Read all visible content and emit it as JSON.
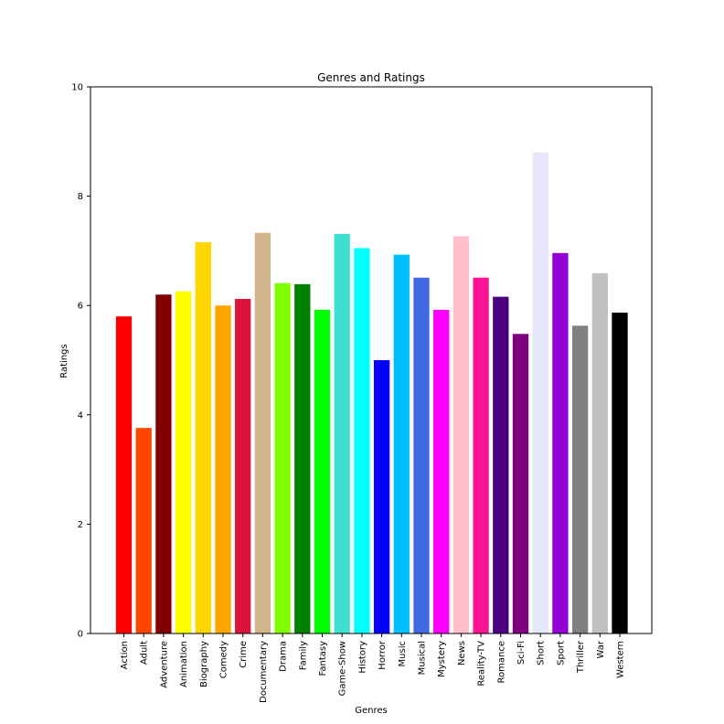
{
  "chart_data": {
    "type": "bar",
    "title": "Genres and Ratings",
    "xlabel": "Genres",
    "ylabel": "Ratings",
    "ylim": [
      0,
      10
    ],
    "yticks": [
      "0",
      "2",
      "4",
      "6",
      "8",
      "10"
    ],
    "categories": [
      "Action",
      "Adult",
      "Adventure",
      "Animation",
      "Biography",
      "Comedy",
      "Crime",
      "Documentary",
      "Drama",
      "Family",
      "Fantasy",
      "Game-Show",
      "History",
      "Horror",
      "Music",
      "Musical",
      "Mystery",
      "News",
      "Reality-TV",
      "Romance",
      "Sci-Fi",
      "Short",
      "Sport",
      "Thriller",
      "War",
      "Western"
    ],
    "values": [
      5.8,
      3.76,
      6.2,
      6.26,
      7.16,
      6.0,
      6.12,
      7.33,
      6.41,
      6.39,
      5.92,
      7.31,
      7.05,
      5.0,
      6.93,
      6.51,
      5.92,
      7.27,
      6.51,
      6.16,
      5.48,
      8.8,
      6.96,
      5.63,
      6.59,
      5.87
    ],
    "colors": [
      "#ff0000",
      "#ff4500",
      "#800000",
      "#ffff00",
      "#ffd700",
      "#ffa500",
      "#dc143c",
      "#d2b48c",
      "#7fff00",
      "#008000",
      "#00ff00",
      "#40e0d0",
      "#00ffff",
      "#0000ff",
      "#00bfff",
      "#4169e1",
      "#ff00ff",
      "#ffc0cb",
      "#ff1493",
      "#4b0082",
      "#800080",
      "#e6e6fa",
      "#9400d3",
      "#808080",
      "#c0c0c0",
      "#000000"
    ]
  }
}
